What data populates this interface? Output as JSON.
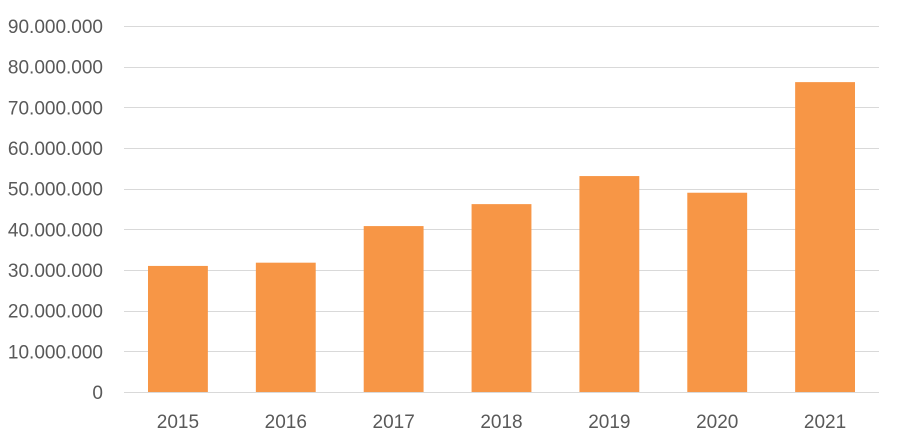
{
  "chart_data": {
    "type": "bar",
    "title": "",
    "xlabel": "",
    "ylabel": "",
    "categories": [
      "2015",
      "2016",
      "2017",
      "2018",
      "2019",
      "2020",
      "2021"
    ],
    "series": [
      {
        "values": [
          31000000,
          31800000,
          40800000,
          46200000,
          53100000,
          49000000,
          76200000
        ],
        "color": "#f79646"
      }
    ],
    "ylim": [
      0,
      90000000
    ],
    "yticks": [
      0,
      10000000,
      20000000,
      30000000,
      40000000,
      50000000,
      60000000,
      70000000,
      80000000,
      90000000
    ],
    "ytick_labels": [
      "0",
      "10.000.000",
      "20.000.000",
      "30.000.000",
      "40.000.000",
      "50.000.000",
      "60.000.000",
      "70.000.000",
      "80.000.000",
      "90.000.000"
    ],
    "grid": true,
    "legend": "none"
  }
}
